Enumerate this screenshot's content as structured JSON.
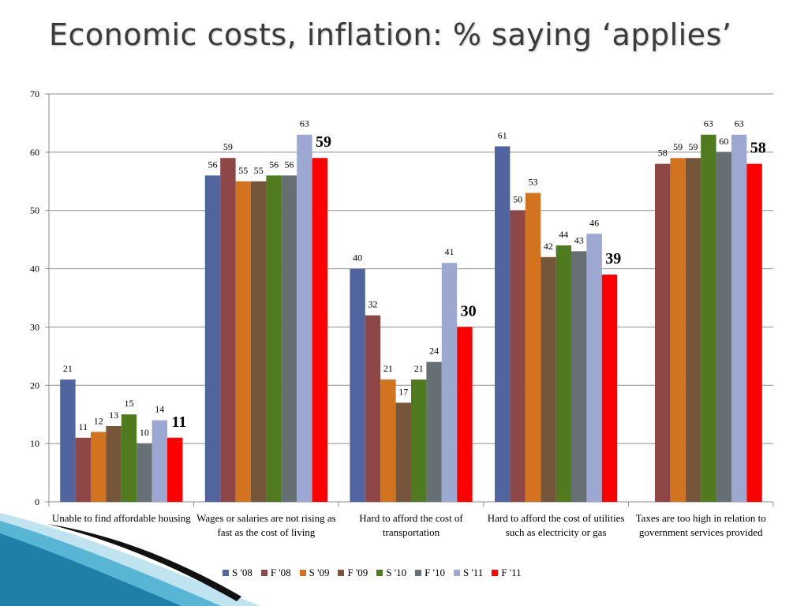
{
  "slide": {
    "title": "Economic costs, inflation: % saying ‘applies’"
  },
  "chart_data": {
    "type": "bar",
    "title": "",
    "xlabel": "",
    "ylabel": "",
    "ylim": [
      0,
      70
    ],
    "yticks": [
      0,
      10,
      20,
      30,
      40,
      50,
      60,
      70
    ],
    "grid": true,
    "legend_position": "bottom",
    "categories": [
      "Unable to find affordable housing",
      "Wages or salaries are not rising as fast as the cost of living",
      "Hard to afford the cost of transportation",
      "Hard to afford the cost of utilities such as electricity or gas",
      "Taxes are too high in relation to government services provided"
    ],
    "series": [
      {
        "name": "S '08",
        "color": "#5065a0",
        "values": [
          21,
          56,
          40,
          61,
          null
        ]
      },
      {
        "name": "F '08",
        "color": "#8e4646",
        "values": [
          11,
          59,
          32,
          50,
          58
        ]
      },
      {
        "name": "S '09",
        "color": "#d2741f",
        "values": [
          12,
          55,
          21,
          53,
          59
        ]
      },
      {
        "name": "F '09",
        "color": "#76563a",
        "values": [
          13,
          55,
          17,
          42,
          59
        ]
      },
      {
        "name": "S '10",
        "color": "#4f7a1e",
        "values": [
          15,
          56,
          21,
          44,
          63
        ]
      },
      {
        "name": "F '10",
        "color": "#666f74",
        "values": [
          10,
          56,
          24,
          43,
          60
        ]
      },
      {
        "name": "S '11",
        "color": "#9ca8d2",
        "values": [
          14,
          63,
          41,
          46,
          63
        ]
      },
      {
        "name": "F '11",
        "color": "#ff0000",
        "values": [
          11,
          59,
          30,
          39,
          58
        ],
        "emphasized_labels": true
      }
    ]
  }
}
